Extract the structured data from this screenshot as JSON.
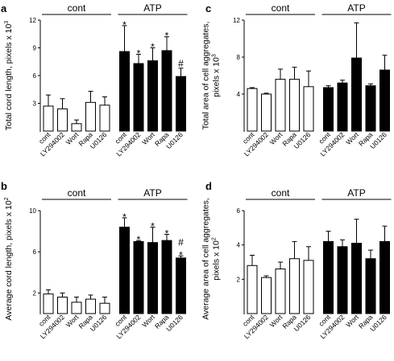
{
  "colors": {
    "control_fill": "#ffffff",
    "atp_fill": "#000000",
    "stroke": "#000000"
  },
  "chart_data": [
    {
      "panel": "a",
      "type": "bar",
      "ylabel": "Total cord length, pixels x 10",
      "ylabel_exponent": "3",
      "yticks": [
        3,
        6,
        9,
        12
      ],
      "ylim": [
        0,
        12
      ],
      "groups": [
        "cont",
        "ATP"
      ],
      "categories": [
        "cont",
        "LY294002",
        "Wort",
        "Rapa",
        "U0126"
      ],
      "series": [
        {
          "values": [
            2.7,
            2.4,
            0.8,
            3.1,
            2.8
          ],
          "errors": [
            1.2,
            1.1,
            0.4,
            1.2,
            0.9
          ],
          "marks": [
            "",
            "",
            "",
            "",
            ""
          ]
        },
        {
          "values": [
            8.6,
            7.3,
            7.6,
            8.7,
            5.9
          ],
          "errors": [
            2.8,
            1.0,
            1.4,
            1.5,
            0.9
          ],
          "marks": [
            "*",
            "*",
            "*",
            "*",
            "#"
          ]
        }
      ]
    },
    {
      "panel": "c",
      "type": "bar",
      "ylabel": "Total area of cell aggregates,",
      "ylabel2": "pixels x 10",
      "ylabel_exponent": "3",
      "yticks": [
        4,
        8,
        12
      ],
      "ylim": [
        0,
        12
      ],
      "groups": [
        "cont",
        "ATP"
      ],
      "categories": [
        "cont",
        "LY294002",
        "Wort",
        "Rapa",
        "U0126"
      ],
      "series": [
        {
          "values": [
            4.6,
            4.0,
            5.6,
            5.6,
            4.8
          ],
          "errors": [
            0.1,
            0.1,
            1.1,
            1.3,
            1.7
          ],
          "marks": [
            "",
            "",
            "",
            "",
            ""
          ]
        },
        {
          "values": [
            4.7,
            5.2,
            7.9,
            4.9,
            6.6
          ],
          "errors": [
            0.2,
            0.3,
            3.8,
            0.2,
            1.6
          ],
          "marks": [
            "",
            "",
            "",
            "",
            ""
          ]
        }
      ]
    },
    {
      "panel": "b",
      "type": "bar",
      "ylabel": "Average cord length, pixels x 10",
      "ylabel_exponent": "2",
      "yticks": [
        2,
        6,
        10
      ],
      "ylim": [
        0,
        10
      ],
      "groups": [
        "cont",
        "ATP"
      ],
      "categories": [
        "cont",
        "LY294002",
        "Wort",
        "Rapa",
        "U0126"
      ],
      "series": [
        {
          "values": [
            1.9,
            1.6,
            1.1,
            1.4,
            1.0
          ],
          "errors": [
            0.4,
            0.4,
            0.5,
            0.4,
            0.6
          ],
          "marks": [
            "",
            "",
            "",
            "",
            ""
          ]
        },
        {
          "values": [
            8.4,
            7.0,
            6.9,
            7.1,
            5.4
          ],
          "errors": [
            0.9,
            0.1,
            1.5,
            0.6,
            0.2
          ],
          "marks": [
            "*",
            "*",
            "*",
            "*",
            "#*"
          ]
        }
      ]
    },
    {
      "panel": "d",
      "type": "bar",
      "ylabel": "Average area of cell aggregates,",
      "ylabel2": "pixels x 10",
      "ylabel_exponent": "2",
      "yticks": [
        2,
        4,
        6
      ],
      "ylim": [
        0,
        6
      ],
      "groups": [
        "cont",
        "ATP"
      ],
      "categories": [
        "cont",
        "LY294002",
        "Wort",
        "Rapa",
        "U0126"
      ],
      "series": [
        {
          "values": [
            2.8,
            2.1,
            2.6,
            3.2,
            3.1
          ],
          "errors": [
            0.6,
            0.1,
            0.4,
            1.0,
            0.8
          ],
          "marks": [
            "",
            "",
            "",
            "",
            ""
          ]
        },
        {
          "values": [
            4.2,
            3.9,
            4.1,
            3.2,
            4.2
          ],
          "errors": [
            0.6,
            0.4,
            1.4,
            0.5,
            0.9
          ],
          "marks": [
            "",
            "",
            "",
            "",
            ""
          ]
        }
      ]
    }
  ]
}
